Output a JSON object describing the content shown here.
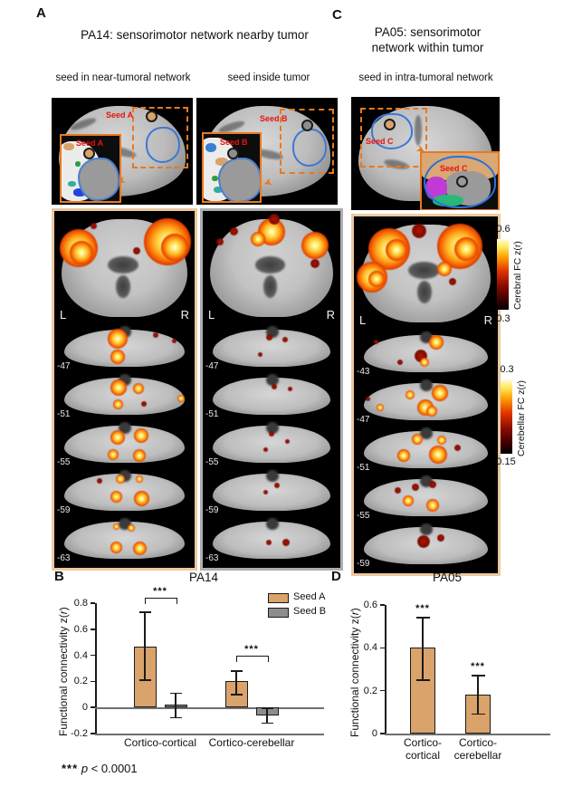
{
  "figure": {
    "panel_a_label": "A",
    "panel_c_label": "C"
  },
  "panel_a": {
    "title": "PA14: sensorimotor network nearby tumor",
    "col1_header": "seed in near-tumoral network",
    "col2_header": "seed inside tumor",
    "seed_a_label": "Seed A",
    "seed_b_label": "Seed B",
    "col1_slices": [
      "-47",
      "-51",
      "-55",
      "-59",
      "-63"
    ],
    "col2_slices": [
      "-47",
      "-51",
      "-55",
      "-59",
      "-63"
    ]
  },
  "panel_c": {
    "title_line1": "PA05: sensorimotor",
    "title_line2": "network within tumor",
    "col_header": "seed in intra-tumoral network",
    "seed_c_label": "Seed C",
    "slices": [
      "-43",
      "-47",
      "-51",
      "-55",
      "-59"
    ]
  },
  "orientation": {
    "left": "L",
    "right": "R"
  },
  "colorbars": {
    "cerebral": {
      "max": "0.6",
      "min": "0.3",
      "label": "Cerebral FC z(r)"
    },
    "cerebellar": {
      "max": "0.3",
      "min": "0.15",
      "label": "Cerebellar FC z(r)"
    }
  },
  "chart_data": [
    {
      "id": "pa14",
      "type": "bar",
      "panel_label": "B",
      "title": "PA14",
      "ylabel_pre": "Functional connectivity z(",
      "ylabel_italic": "r",
      "ylabel_post": ")",
      "ylim": [
        -0.2,
        0.8
      ],
      "yticks": [
        "0.8",
        "0.6",
        "0.4",
        "0.2",
        "0",
        "-0.2"
      ],
      "ytick_values": [
        0.8,
        0.6,
        0.4,
        0.2,
        0,
        -0.2
      ],
      "categories": [
        "Cortico-cortical",
        "Cortico-cerebellar"
      ],
      "series": [
        {
          "name": "Seed A",
          "color": "#D9A36B",
          "values": [
            0.47,
            0.2
          ],
          "err_low": [
            0.21,
            0.1
          ],
          "err_high": [
            0.73,
            0.28
          ]
        },
        {
          "name": "Seed B",
          "color": "#8E8E8E",
          "values": [
            0.02,
            -0.06
          ],
          "err_low": [
            -0.08,
            -0.12
          ],
          "err_high": [
            0.11,
            -0.01
          ]
        }
      ],
      "significance": [
        "***",
        "***"
      ],
      "legend_position": "top-right",
      "grid": false
    },
    {
      "id": "pa05",
      "type": "bar",
      "panel_label": "D",
      "title": "PA05",
      "ylabel_pre": "Functional connectivity z(",
      "ylabel_italic": "r",
      "ylabel_post": ")",
      "ylim": [
        0,
        0.6
      ],
      "yticks": [
        "0.6",
        "0.4",
        "0.2",
        "0"
      ],
      "ytick_values": [
        0.6,
        0.4,
        0.2,
        0
      ],
      "categories": [
        "Cortico-\ncortical",
        "Cortico-\ncerebellar"
      ],
      "series": [
        {
          "name": "Seed C",
          "color": "#D9A36B",
          "values": [
            0.4,
            0.18
          ],
          "err_low": [
            0.25,
            0.09
          ],
          "err_high": [
            0.54,
            0.27
          ]
        }
      ],
      "significance": [
        "***",
        "***"
      ],
      "grid": false
    }
  ],
  "footer": {
    "stars": "***",
    "p": "p",
    "rest": "< 0.0001"
  },
  "colors": {
    "seed_a_bar": "#D9A36B",
    "seed_b_bar": "#8E8E8E",
    "frame_tan": "#EBC9A0",
    "frame_gray": "#ADADAD",
    "outline_orange": "#E8791F",
    "seed_label_red": "#E8120E",
    "tumor_outline_blue": "#3A78D8"
  }
}
